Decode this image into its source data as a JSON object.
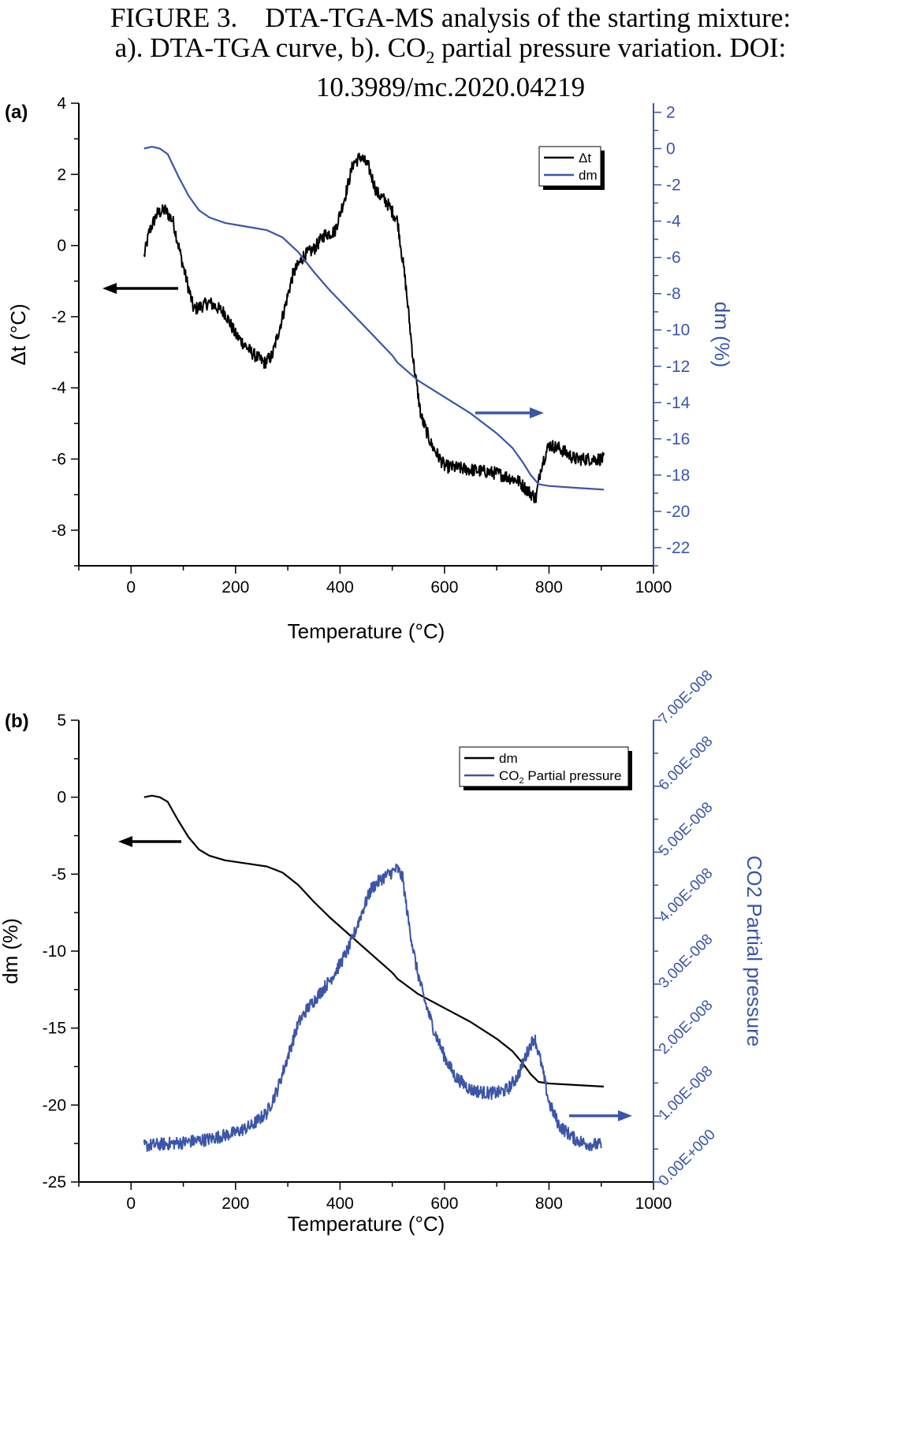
{
  "figure": {
    "caption_lines": [
      [
        "FIGURE 3.",
        "DTA-TGA-MS analysis of the starting mixture:"
      ],
      [
        "a). DTA-TGA curve, b). CO",
        "2",
        " partial pressure variation. DOI:"
      ],
      [
        "10.3989/mc.2020.04219"
      ]
    ]
  },
  "colors": {
    "black": "#000000",
    "blue": "#3b55a8"
  },
  "chart_data": [
    {
      "panel_label": "(a)",
      "type": "line",
      "xlabel": "Temperature (°C)",
      "ylabel_left": "Δt (°C)",
      "ylabel_right": "dm (%)",
      "xlim": [
        -100,
        1000
      ],
      "ylim_left": [
        -9,
        4
      ],
      "ylim_right": [
        -23,
        2.5
      ],
      "x_ticks": [
        0,
        200,
        400,
        600,
        800,
        1000
      ],
      "y_ticks_left": [
        -8,
        -6,
        -4,
        -2,
        0,
        2,
        4
      ],
      "y_ticks_right": [
        -22,
        -20,
        -18,
        -16,
        -14,
        -12,
        -10,
        -8,
        -6,
        -4,
        -2,
        0,
        2
      ],
      "legend": {
        "position": "top-right",
        "entries": [
          {
            "label": "Δt",
            "color": "#000000"
          },
          {
            "label": "dm",
            "color": "#3b55a8"
          }
        ]
      },
      "arrows": [
        {
          "direction": "left",
          "axis": "left"
        },
        {
          "direction": "right",
          "axis": "right"
        }
      ],
      "series": [
        {
          "name": "Δt",
          "axis": "left",
          "color": "#000000",
          "noisy": true,
          "x": [
            25,
            35,
            50,
            65,
            80,
            100,
            120,
            150,
            180,
            200,
            230,
            255,
            270,
            290,
            310,
            330,
            350,
            370,
            390,
            410,
            425,
            440,
            455,
            470,
            490,
            510,
            525,
            540,
            555,
            575,
            600,
            650,
            700,
            740,
            760,
            775,
            785,
            800,
            820,
            850,
            880,
            905
          ],
          "y": [
            -0.3,
            0.4,
            0.9,
            1.0,
            0.7,
            -0.6,
            -1.8,
            -1.6,
            -1.9,
            -2.5,
            -3.0,
            -3.3,
            -3.1,
            -2.0,
            -0.8,
            -0.3,
            -0.1,
            0.3,
            0.4,
            1.4,
            2.3,
            2.5,
            2.2,
            1.5,
            1.2,
            0.7,
            -1.0,
            -3.2,
            -4.8,
            -5.6,
            -6.2,
            -6.3,
            -6.4,
            -6.6,
            -6.9,
            -7.1,
            -6.2,
            -5.6,
            -5.7,
            -6.0,
            -6.0,
            -6.0
          ]
        },
        {
          "name": "dm",
          "axis": "right",
          "color": "#3b55a8",
          "noisy": false,
          "x": [
            25,
            40,
            55,
            70,
            90,
            110,
            130,
            150,
            180,
            220,
            260,
            290,
            320,
            350,
            380,
            420,
            460,
            500,
            510,
            550,
            600,
            650,
            700,
            730,
            750,
            765,
            780,
            800,
            850,
            905
          ],
          "y": [
            0.0,
            0.1,
            0.0,
            -0.3,
            -1.5,
            -2.6,
            -3.4,
            -3.8,
            -4.1,
            -4.3,
            -4.5,
            -4.9,
            -5.7,
            -6.8,
            -7.8,
            -9.0,
            -10.2,
            -11.4,
            -11.8,
            -12.8,
            -13.7,
            -14.6,
            -15.7,
            -16.5,
            -17.3,
            -18.0,
            -18.5,
            -18.6,
            -18.7,
            -18.8
          ]
        }
      ]
    },
    {
      "panel_label": "(b)",
      "type": "line",
      "xlabel": "Temperature (°C)",
      "ylabel_left": "dm (%)",
      "ylabel_right": "CO2 Partial pressure",
      "xlim": [
        -100,
        1000
      ],
      "ylim_left": [
        -25,
        5
      ],
      "ylim_right": [
        0,
        7e-08
      ],
      "x_ticks": [
        0,
        200,
        400,
        600,
        800,
        1000
      ],
      "y_ticks_left": [
        -25,
        -20,
        -15,
        -10,
        -5,
        0,
        5
      ],
      "y_ticks_right": [
        0,
        1e-08,
        2e-08,
        3e-08,
        4e-08,
        5e-08,
        6e-08,
        7e-08
      ],
      "y_tick_labels_right": [
        "0.00E+000",
        "1.00E-008",
        "2.00E-008",
        "3.00E-008",
        "4.00E-008",
        "5.00E-008",
        "6.00E-008",
        "7.00E-008"
      ],
      "legend": {
        "position": "top-right",
        "entries": [
          {
            "label": "dm",
            "color": "#000000"
          },
          {
            "label": "CO",
            "sub": "2",
            "tail": " Partial pressure",
            "color": "#3b55a8"
          }
        ]
      },
      "arrows": [
        {
          "direction": "left",
          "axis": "left"
        },
        {
          "direction": "right",
          "axis": "right"
        }
      ],
      "series": [
        {
          "name": "dm",
          "axis": "left",
          "color": "#000000",
          "noisy": false,
          "x": [
            25,
            40,
            55,
            70,
            90,
            110,
            130,
            150,
            180,
            220,
            260,
            290,
            320,
            350,
            380,
            420,
            460,
            500,
            510,
            550,
            600,
            650,
            700,
            730,
            750,
            765,
            780,
            800,
            850,
            905
          ],
          "y": [
            0.0,
            0.1,
            0.0,
            -0.3,
            -1.5,
            -2.6,
            -3.4,
            -3.8,
            -4.1,
            -4.3,
            -4.5,
            -4.9,
            -5.7,
            -6.8,
            -7.8,
            -9.0,
            -10.2,
            -11.4,
            -11.8,
            -12.8,
            -13.7,
            -14.6,
            -15.7,
            -16.5,
            -17.3,
            -18.0,
            -18.5,
            -18.6,
            -18.7,
            -18.8
          ]
        },
        {
          "name": "CO2 Partial pressure",
          "axis": "right",
          "color": "#3b55a8",
          "noisy": true,
          "x": [
            25,
            100,
            150,
            200,
            230,
            260,
            280,
            300,
            320,
            335,
            360,
            380,
            400,
            420,
            440,
            460,
            480,
            500,
            510,
            520,
            530,
            545,
            560,
            580,
            600,
            620,
            650,
            680,
            700,
            720,
            740,
            760,
            772,
            785,
            800,
            820,
            850,
            870,
            900
          ],
          "y": [
            5.5e-09,
            6e-09,
            6.5e-09,
            7.5e-09,
            8.5e-09,
            1.05e-08,
            1.4e-08,
            1.9e-08,
            2.4e-08,
            2.6e-08,
            2.85e-08,
            3.05e-08,
            3.3e-08,
            3.6e-08,
            4.05e-08,
            4.45e-08,
            4.6e-08,
            4.7e-08,
            4.75e-08,
            4.6e-08,
            4e-08,
            3.3e-08,
            2.8e-08,
            2.3e-08,
            1.9e-08,
            1.6e-08,
            1.4e-08,
            1.35e-08,
            1.35e-08,
            1.4e-08,
            1.6e-08,
            2e-08,
            2.2e-08,
            1.8e-08,
            1.2e-08,
            8.5e-09,
            6.5e-09,
            5.8e-09,
            5.6e-09
          ]
        }
      ]
    }
  ]
}
